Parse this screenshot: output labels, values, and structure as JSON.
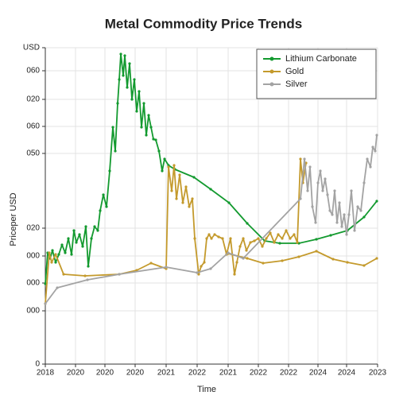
{
  "chart_data": {
    "type": "line",
    "title": "Metal Commodity Price Trends",
    "x_label": "Time",
    "y_label": "Priceper USD",
    "xlim": [
      0,
      418
    ],
    "ylim": [
      0,
      398
    ],
    "grid": true,
    "legend": "upper right",
    "xticks": [
      {
        "value": 0,
        "label": "2018"
      },
      {
        "value": 38,
        "label": "2020"
      },
      {
        "value": 75,
        "label": "2020"
      },
      {
        "value": 113,
        "label": "2020"
      },
      {
        "value": 152,
        "label": "2021"
      },
      {
        "value": 191,
        "label": "2022"
      },
      {
        "value": 230,
        "label": "2021"
      },
      {
        "value": 268,
        "label": "2022"
      },
      {
        "value": 306,
        "label": "2022"
      },
      {
        "value": 343,
        "label": "2024"
      },
      {
        "value": 379,
        "label": "2024"
      },
      {
        "value": 418,
        "label": "2023"
      }
    ],
    "yticks": [
      0,
      {
        "value": 67,
        "label": "000"
      },
      {
        "value": 102,
        "label": "000"
      },
      {
        "value": 136,
        "label": "000"
      },
      {
        "value": 171,
        "label": "020"
      },
      {
        "value": 265,
        "label": "050"
      },
      {
        "value": 299,
        "label": "060"
      },
      {
        "value": 333,
        "label": "020"
      },
      {
        "value": 369,
        "label": "060"
      },
      {
        "value": 398,
        "label": "USD"
      }
    ],
    "series": [
      {
        "name": "Lithium Carbonate",
        "color": "#139a2f",
        "x": [
          0,
          3,
          6,
          9,
          13,
          17,
          21,
          25,
          29,
          33,
          36,
          39,
          43,
          47,
          51,
          54,
          58,
          62,
          66,
          69,
          73,
          77,
          81,
          85,
          88,
          91,
          93,
          95,
          98,
          100,
          103,
          106,
          109,
          112,
          115,
          118,
          121,
          124,
          127,
          130,
          133,
          136,
          139,
          143,
          147,
          150,
          155,
          163,
          187,
          208,
          231,
          254,
          276,
          295,
          319,
          341,
          359,
          380,
          401,
          417
        ],
        "values": [
          101,
          140,
          133,
          143,
          128,
          138,
          150,
          140,
          158,
          138,
          168,
          153,
          163,
          148,
          173,
          123,
          158,
          173,
          168,
          193,
          213,
          198,
          243,
          298,
          268,
          328,
          358,
          390,
          363,
          388,
          348,
          378,
          333,
          358,
          318,
          343,
          298,
          328,
          288,
          313,
          298,
          283,
          282,
          268,
          243,
          258,
          250,
          245,
          235,
          220,
          203,
          177,
          155,
          152,
          152,
          157,
          162,
          168,
          185,
          205
        ]
      },
      {
        "name": "Gold",
        "color": "#c49a2c",
        "x": [
          0,
          5,
          8,
          13,
          23,
          50,
          93,
          115,
          133,
          152,
          155,
          159,
          162,
          165,
          169,
          173,
          177,
          181,
          185,
          188,
          193,
          196,
          200,
          203,
          206,
          209,
          213,
          218,
          223,
          228,
          233,
          238,
          241,
          245,
          249,
          253,
          258,
          263,
          268,
          273,
          278,
          283,
          288,
          293,
          298,
          303,
          308,
          313,
          317,
          321,
          324,
          328,
          null,
          230,
          254,
          274,
          298,
          319,
          341,
          362,
          380,
          401,
          417
        ],
        "values": [
          76,
          140,
          128,
          138,
          113,
          111,
          113,
          118,
          127,
          120,
          248,
          218,
          250,
          208,
          238,
          203,
          223,
          198,
          208,
          158,
          113,
          123,
          128,
          158,
          163,
          158,
          163,
          160,
          158,
          138,
          158,
          113,
          128,
          148,
          158,
          143,
          153,
          155,
          158,
          148,
          158,
          165,
          153,
          163,
          158,
          168,
          158,
          163,
          153,
          258,
          228,
          253,
          null,
          139,
          133,
          127,
          130,
          135,
          142,
          132,
          128,
          124,
          133
        ]
      },
      {
        "name": "Silver",
        "color": "#a3a3a3",
        "x": [
          0,
          15,
          53,
          93,
          152,
          191,
          208,
          230,
          249,
          321,
          326,
          330,
          333,
          336,
          340,
          343,
          346,
          349,
          352,
          355,
          358,
          361,
          364,
          367,
          370,
          373,
          376,
          379,
          382,
          385,
          389,
          393,
          397,
          401,
          405,
          409,
          412,
          415,
          417
        ],
        "values": [
          76,
          96,
          106,
          113,
          122,
          115,
          120,
          140,
          133,
          208,
          258,
          218,
          248,
          198,
          178,
          228,
          243,
          218,
          233,
          213,
          193,
          188,
          218,
          178,
          203,
          173,
          188,
          163,
          188,
          218,
          168,
          198,
          193,
          228,
          258,
          248,
          273,
          268,
          288
        ]
      }
    ]
  }
}
